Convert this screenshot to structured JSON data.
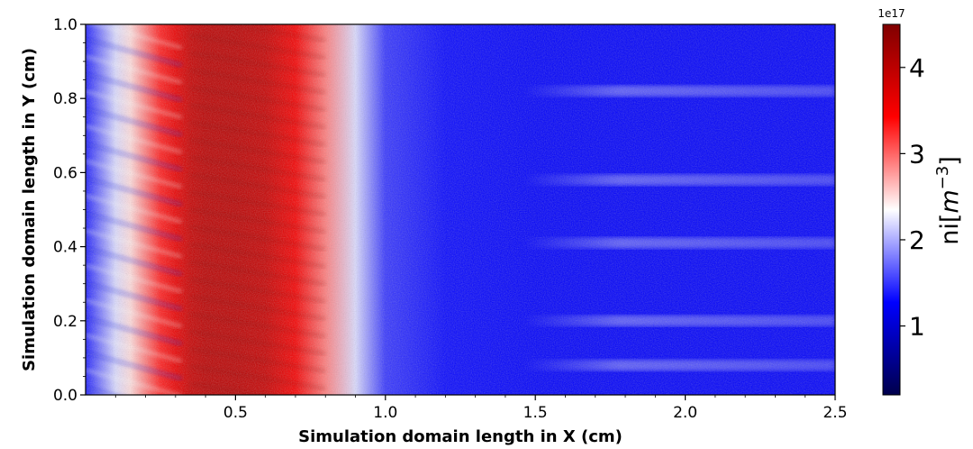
{
  "chart_data": {
    "type": "heatmap",
    "xlabel": "Simulation domain length in X (cm)",
    "ylabel": "Simulation domain length in Y (cm)",
    "xlim": [
      0.0,
      2.5
    ],
    "ylim": [
      0.0,
      1.0
    ],
    "x_ticks": [
      0.5,
      1.0,
      1.5,
      2.0,
      2.5
    ],
    "x_tick_labels": [
      "0.5",
      "1.0",
      "1.5",
      "2.0",
      "2.5"
    ],
    "y_ticks": [
      0.0,
      0.2,
      0.4,
      0.6,
      0.8,
      1.0
    ],
    "y_tick_labels": [
      "0.0",
      "0.2",
      "0.4",
      "0.6",
      "0.8",
      "1.0"
    ],
    "colorbar": {
      "label": "ni[m⁻³]",
      "label_plain": "ni[",
      "label_math": "m",
      "label_sup": "−3",
      "label_close": "]",
      "multiplier_label": "1e17",
      "range": [
        0.2,
        4.5
      ],
      "ticks": [
        1,
        2,
        3,
        4
      ],
      "tick_labels": [
        "1",
        "2",
        "3",
        "4"
      ],
      "colormap": "seismic",
      "colors": [
        "#00004c",
        "#0000ff",
        "#ffffff",
        "#ff0000",
        "#800000"
      ]
    },
    "field_profile_along_x": {
      "x": [
        0.0,
        0.05,
        0.1,
        0.15,
        0.2,
        0.25,
        0.3,
        0.35,
        0.4,
        0.5,
        0.6,
        0.7,
        0.8,
        0.9,
        1.0,
        1.2,
        1.5,
        1.8,
        2.1,
        2.5
      ],
      "ni": [
        1.4,
        1.8,
        2.2,
        2.5,
        2.9,
        3.3,
        3.6,
        3.9,
        4.0,
        4.0,
        3.9,
        3.5,
        2.9,
        2.2,
        1.5,
        1.3,
        1.25,
        1.25,
        1.25,
        1.25
      ]
    },
    "bright_horizontal_bands_y": [
      0.08,
      0.2,
      0.41,
      0.58,
      0.82
    ]
  }
}
